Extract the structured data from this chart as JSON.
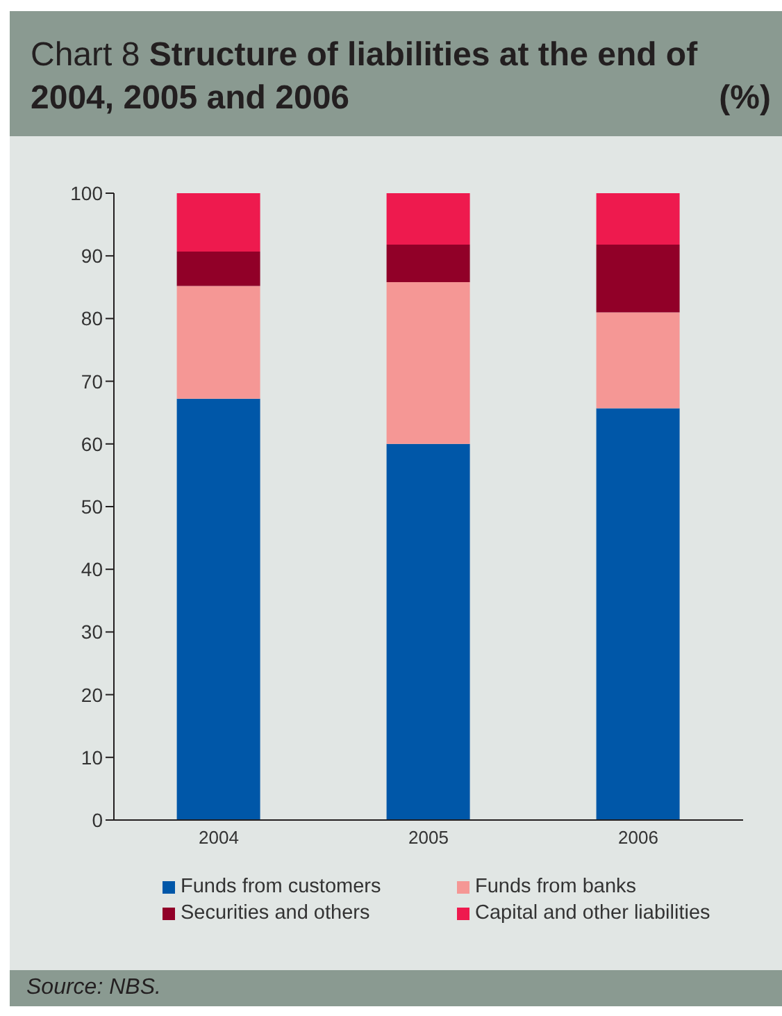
{
  "chart_data": {
    "type": "bar",
    "title": "Chart 8 Structure of liabilities at the end of 2004, 2005 and 2006",
    "ylabel": "(%)",
    "categories": [
      "2004",
      "2005",
      "2006"
    ],
    "stacked": true,
    "series": [
      {
        "name": "Funds from customers",
        "color": "#0057a8",
        "values": [
          67.2,
          60,
          65.7
        ]
      },
      {
        "name": "Funds from banks",
        "color": "#f59795",
        "values": [
          18,
          25.8,
          15.3
        ]
      },
      {
        "name": "Securities and others",
        "color": "#910028",
        "values": [
          5.5,
          6,
          10.8
        ]
      },
      {
        "name": "Capital and other liabilities",
        "color": "#ee1a4e",
        "values": [
          9.3,
          8.2,
          8.2
        ]
      }
    ],
    "ylim": [
      0,
      100
    ],
    "yticks": [
      0,
      10,
      20,
      30,
      40,
      50,
      60,
      70,
      80,
      90,
      100
    ],
    "grid": false,
    "legend": "bottom",
    "annotations": [
      "Source: NBS."
    ]
  }
}
